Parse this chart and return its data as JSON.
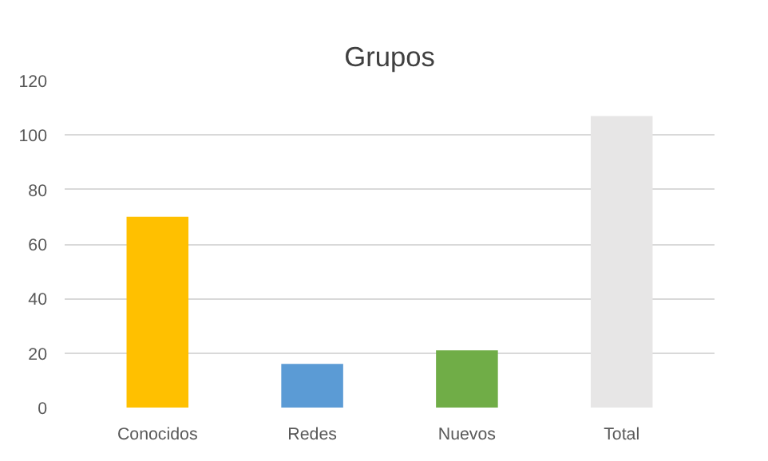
{
  "chart_data": {
    "type": "bar",
    "title": "Grupos",
    "categories": [
      "Conocidos",
      "Redes",
      "Nuevos",
      "Total"
    ],
    "values": [
      70,
      16,
      21,
      107
    ],
    "colors": [
      "#ffc000",
      "#5b9bd5",
      "#70ad47",
      "#e7e6e6"
    ],
    "ylim": [
      0,
      120
    ],
    "yticks": [
      0,
      20,
      40,
      60,
      80,
      100,
      120
    ],
    "grid": "y"
  }
}
